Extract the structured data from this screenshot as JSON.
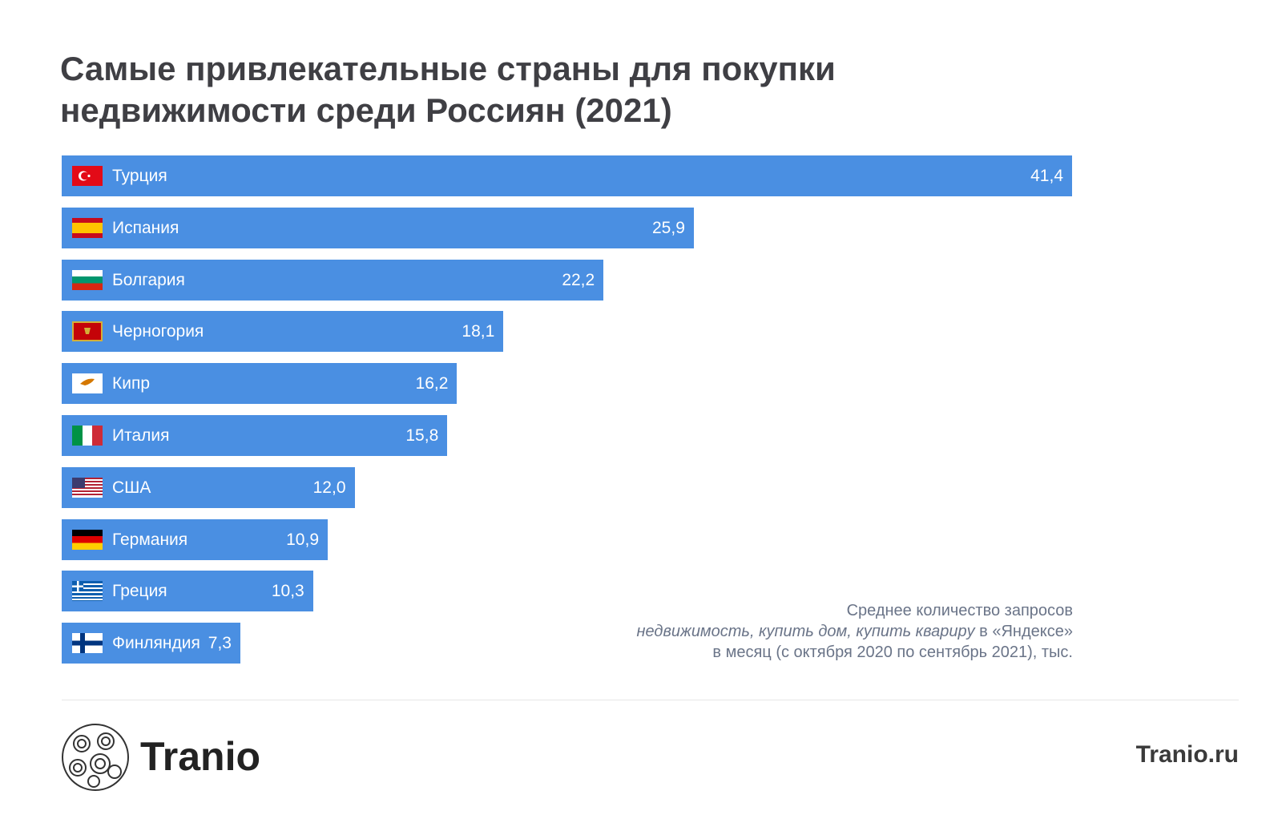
{
  "chart_data": {
    "type": "bar",
    "orientation": "horizontal",
    "title": "Самые привлекательные страны для покупки недвижимости среди Россиян (2021)",
    "categories": [
      "Турция",
      "Испания",
      "Болгария",
      "Черногория",
      "Кипр",
      "Италия",
      "США",
      "Германия",
      "Греция",
      "Финляндия"
    ],
    "values": [
      41.4,
      25.9,
      22.2,
      18.1,
      16.2,
      15.8,
      12.0,
      10.9,
      10.3,
      7.3
    ],
    "value_labels": [
      "41,4",
      "25,9",
      "22,2",
      "18,1",
      "16,2",
      "15,8",
      "12,0",
      "10,9",
      "10,3",
      "7,3"
    ],
    "flags": [
      "turkey-flag",
      "spain-flag",
      "bulgaria-flag",
      "montenegro-flag",
      "cyprus-flag",
      "italy-flag",
      "usa-flag",
      "germany-flag",
      "greece-flag",
      "finland-flag"
    ],
    "bar_color": "#4a8fe2",
    "xlabel": "",
    "ylabel": ""
  },
  "note": {
    "line1": "Среднее количество запросов",
    "line2_italic": "недвижимость, купить дом, купить кварирy",
    "line2_rest": " в «Яндексе»",
    "line3": "в месяц (с октября 2020 по сентябрь 2021), тыс."
  },
  "footer": {
    "brand": "Tranio",
    "site": "Tranio.ru"
  }
}
